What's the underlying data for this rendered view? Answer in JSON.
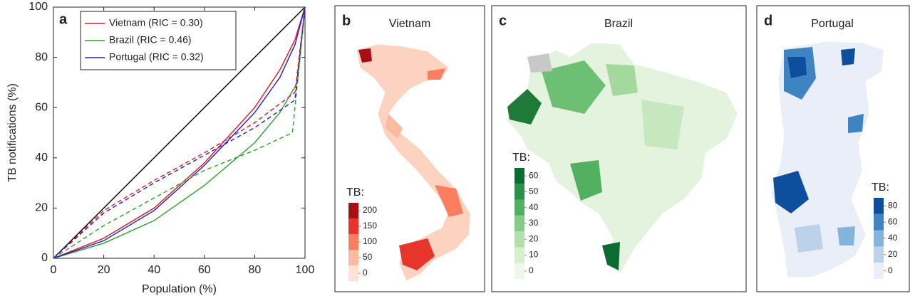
{
  "chart_data": [
    {
      "type": "line",
      "panel": "a",
      "xlabel": "Population (%)",
      "ylabel": "TB notifications (%)",
      "xlim": [
        0,
        100
      ],
      "ylim": [
        0,
        100
      ],
      "xticks": [
        0,
        20,
        40,
        60,
        80,
        100
      ],
      "yticks": [
        0,
        20,
        40,
        60,
        80,
        100
      ],
      "series": [
        {
          "color": "#000000",
          "dash": false,
          "x": [
            0,
            100
          ],
          "values": [
            0,
            100
          ]
        },
        {
          "name": "Vietnam (RIC = 0.30)",
          "color": "#e8141b",
          "dash": false,
          "x": [
            0,
            20,
            40,
            60,
            80,
            90,
            96,
            100
          ],
          "values": [
            0,
            8,
            20,
            38,
            60,
            75,
            87,
            100
          ]
        },
        {
          "name": "Brazil (RIC = 0.46)",
          "color": "#2ca02c",
          "dash": false,
          "x": [
            0,
            20,
            40,
            60,
            80,
            90,
            97,
            100
          ],
          "values": [
            0,
            6,
            15,
            29,
            46,
            58,
            70,
            100
          ]
        },
        {
          "name": "Portugal (RIC = 0.32)",
          "color": "#1f1fd6",
          "dash": false,
          "x": [
            0,
            20,
            40,
            60,
            80,
            90,
            96,
            100
          ],
          "values": [
            0,
            7,
            19,
            37,
            58,
            72,
            85,
            100
          ]
        },
        {
          "color": "#e8141b",
          "dash": true,
          "x": [
            0,
            20,
            40,
            60,
            80,
            96,
            100
          ],
          "values": [
            0,
            19,
            31,
            42,
            54,
            66,
            100
          ]
        },
        {
          "color": "#2ca02c",
          "dash": true,
          "x": [
            0,
            20,
            40,
            60,
            80,
            95,
            98,
            100
          ],
          "values": [
            0,
            13,
            24,
            35,
            43,
            50,
            80,
            100
          ]
        },
        {
          "color": "#1f1fd6",
          "dash": true,
          "x": [
            0,
            20,
            40,
            60,
            80,
            96,
            100
          ],
          "values": [
            0,
            18,
            30,
            41,
            52,
            63,
            100
          ]
        }
      ]
    },
    {
      "type": "map",
      "panel": "b",
      "title": "Vietnam",
      "colorbar_label": "TB:",
      "colorbar_ticks": [
        0,
        50,
        100,
        150,
        200
      ],
      "colors": [
        "#fde3d6",
        "#fcbba1",
        "#fb7e5e",
        "#e8352b",
        "#a50f15"
      ]
    },
    {
      "type": "map",
      "panel": "c",
      "title": "Brazil",
      "colorbar_label": "TB:",
      "colorbar_ticks": [
        0,
        10,
        20,
        30,
        40,
        50,
        60
      ],
      "colors": [
        "#eef8ea",
        "#d5efcf",
        "#b2e0ab",
        "#86cc85",
        "#52b160",
        "#2a914a",
        "#0b6b30"
      ]
    },
    {
      "type": "map",
      "panel": "d",
      "title": "Portugal",
      "colorbar_label": "TB:",
      "colorbar_ticks": [
        0,
        20,
        40,
        60,
        80
      ],
      "colors": [
        "#e9eef9",
        "#bcd1ea",
        "#84b3dc",
        "#3f84c2",
        "#0d4f9c"
      ]
    }
  ]
}
